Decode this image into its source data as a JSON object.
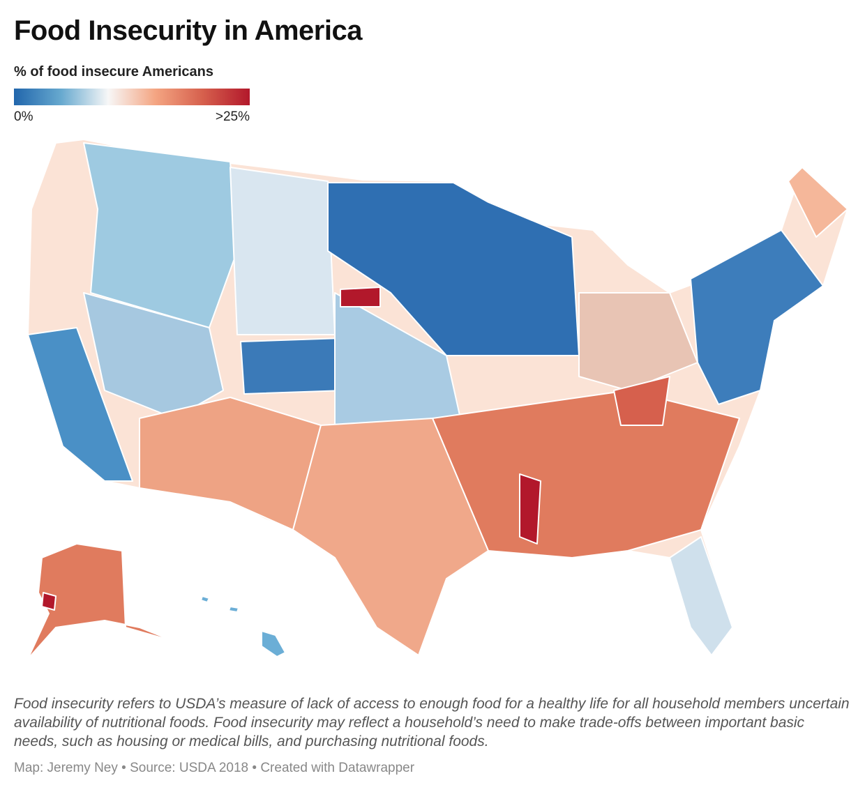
{
  "header": {
    "title": "Food Insecurity in America"
  },
  "legend": {
    "title": "% of food insecure Americans",
    "min_label": "0%",
    "max_label": ">25%",
    "colors": [
      "#2166ac",
      "#67a9cf",
      "#f7f7f7",
      "#f4a582",
      "#d6604d",
      "#b2182b"
    ]
  },
  "footer": {
    "description": "Food insecurity refers to USDA’s measure of lack of access to enough food for a healthy life for all household members uncertain availability of nutritional foods. Food insecurity may reflect a household’s need to make trade-offs between important basic needs, such as housing or medical bills, and purchasing nutritional foods.",
    "credit": "Map: Jeremy Ney • Source: USDA 2018 • Created with Datawrapper"
  }
}
